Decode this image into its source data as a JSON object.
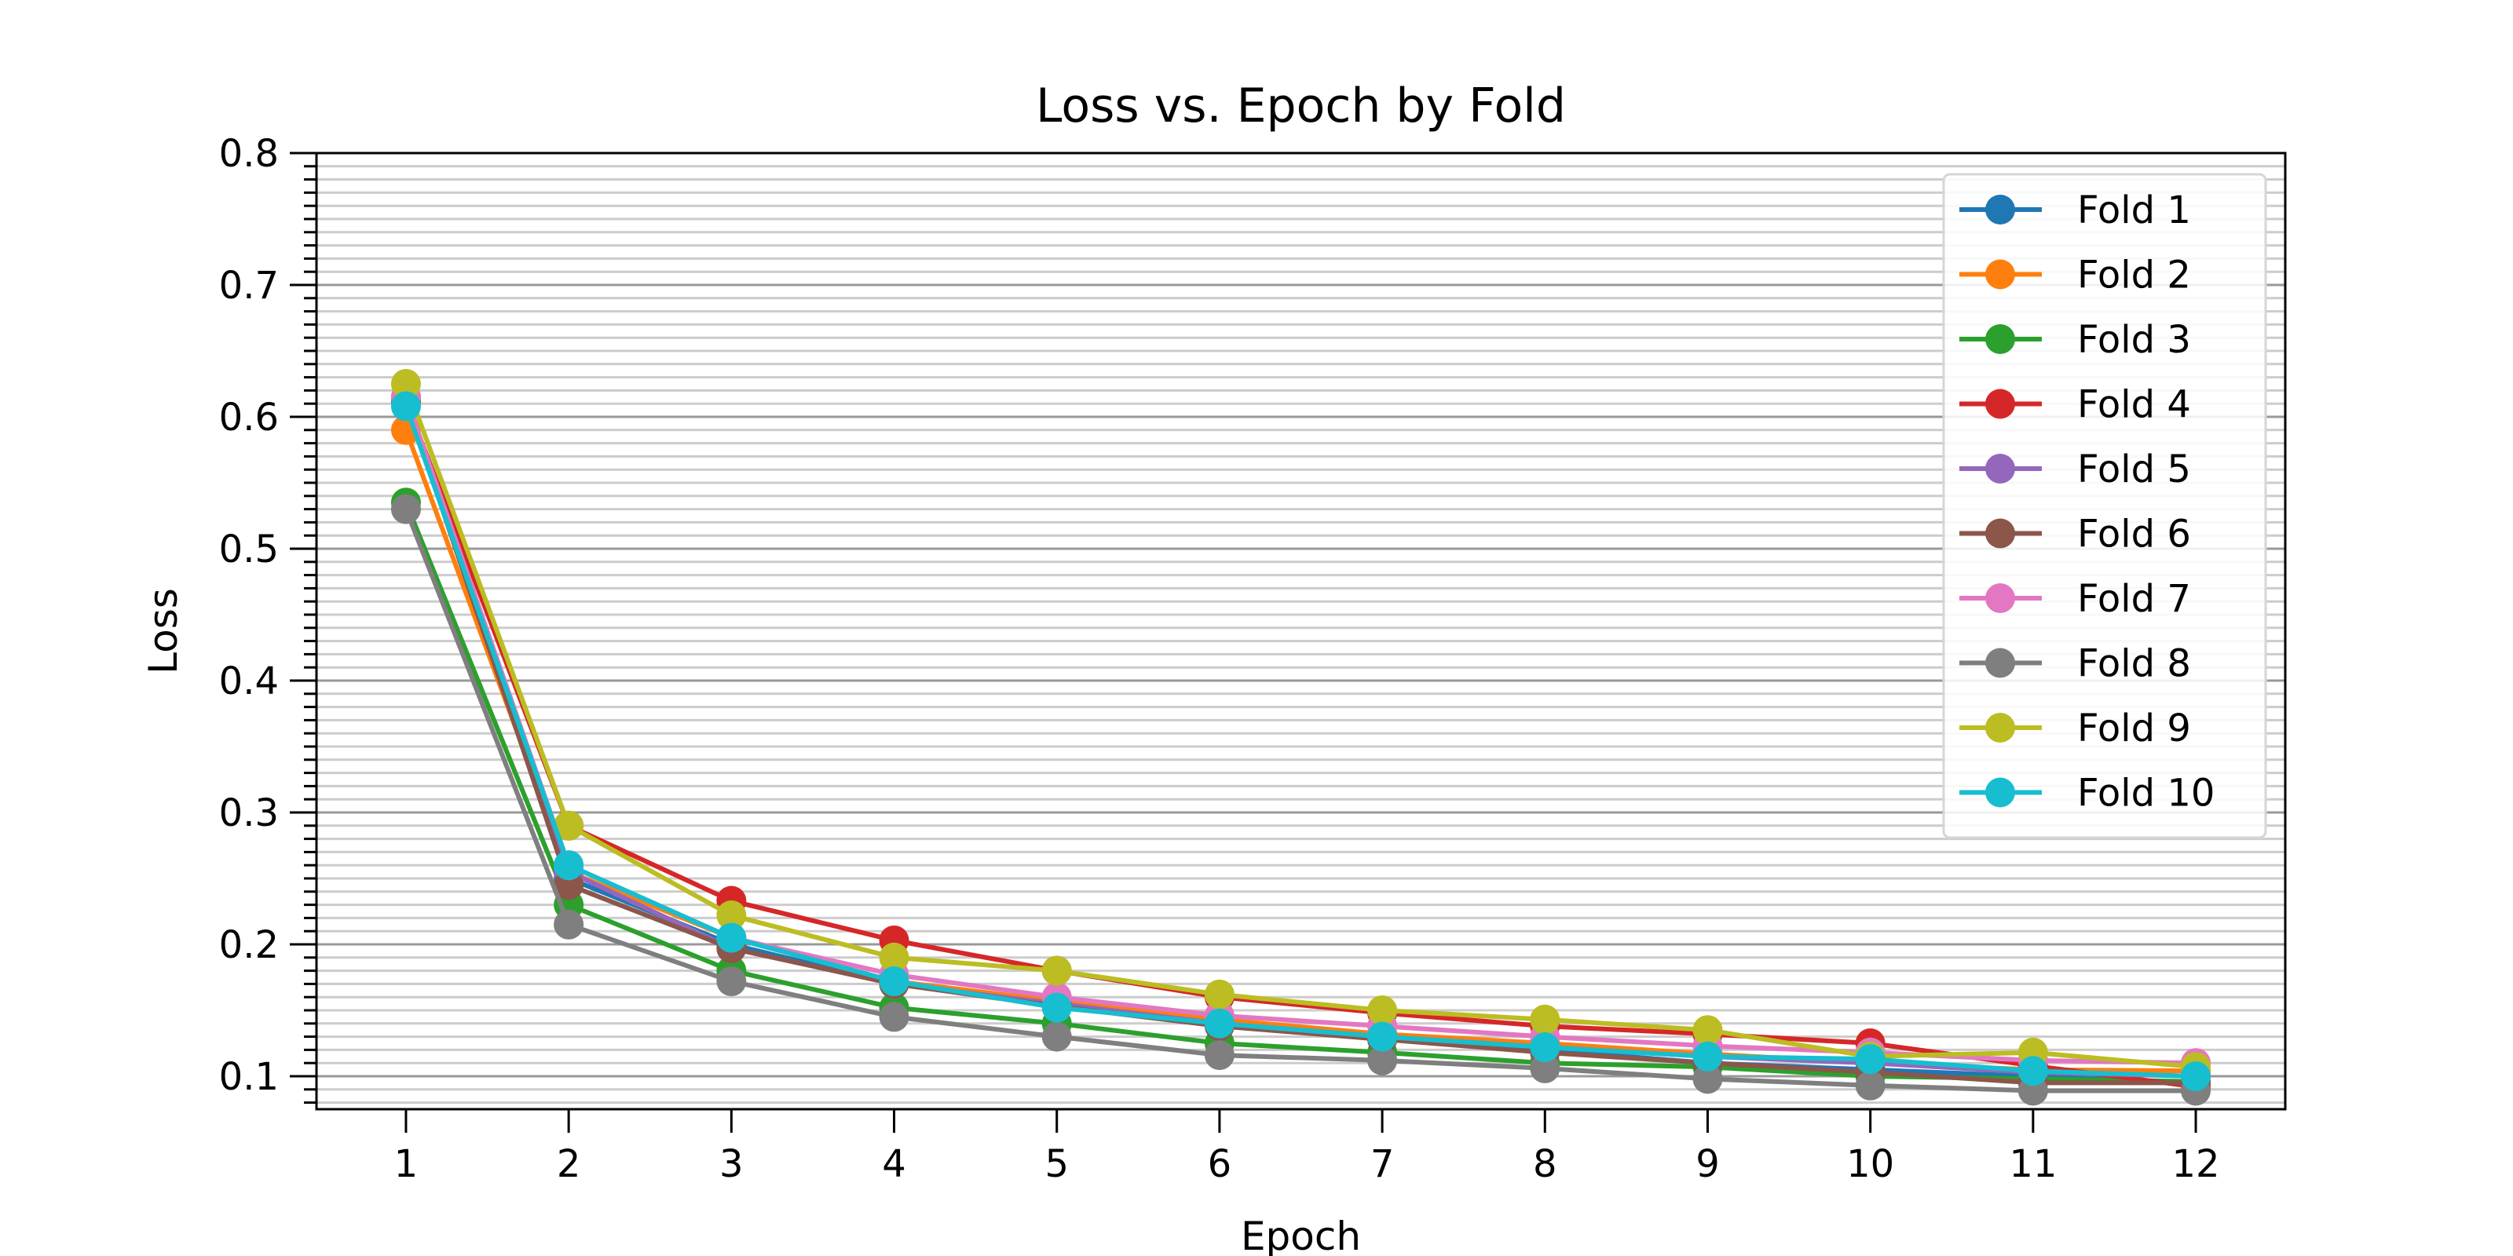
{
  "chart_data": {
    "type": "line",
    "title": "Loss vs. Epoch by Fold",
    "xlabel": "Epoch",
    "ylabel": "Loss",
    "x": [
      1,
      2,
      3,
      4,
      5,
      6,
      7,
      8,
      9,
      10,
      11,
      12
    ],
    "x_tick_labels": [
      "1",
      "2",
      "3",
      "4",
      "5",
      "6",
      "7",
      "8",
      "9",
      "10",
      "11",
      "12"
    ],
    "y_tick_labels": [
      "0.1",
      "0.2",
      "0.3",
      "0.4",
      "0.5",
      "0.6",
      "0.7",
      "0.8"
    ],
    "xlim": [
      0.45,
      12.55
    ],
    "ylim": [
      0.075,
      0.8
    ],
    "grid": "horizontal major and minor",
    "legend_position": "top-right",
    "series": [
      {
        "name": "Fold 1",
        "color": "#1f77b4",
        "values": [
          0.615,
          0.25,
          0.2,
          0.17,
          0.155,
          0.14,
          0.128,
          0.12,
          0.11,
          0.105,
          0.1,
          0.095
        ]
      },
      {
        "name": "Fold 2",
        "color": "#ff7f0e",
        "values": [
          0.59,
          0.255,
          0.205,
          0.172,
          0.157,
          0.143,
          0.132,
          0.125,
          0.117,
          0.11,
          0.105,
          0.104
        ]
      },
      {
        "name": "Fold 3",
        "color": "#2ca02c",
        "values": [
          0.535,
          0.23,
          0.18,
          0.152,
          0.14,
          0.125,
          0.118,
          0.11,
          0.107,
          0.1,
          0.098,
          0.096
        ]
      },
      {
        "name": "Fold 4",
        "color": "#d62728",
        "values": [
          0.612,
          0.29,
          0.233,
          0.203,
          0.18,
          0.16,
          0.148,
          0.138,
          0.132,
          0.125,
          0.108,
          0.092
        ]
      },
      {
        "name": "Fold 5",
        "color": "#9467bd",
        "values": [
          0.61,
          0.255,
          0.197,
          0.17,
          0.155,
          0.14,
          0.13,
          0.122,
          0.115,
          0.11,
          0.103,
          0.1
        ]
      },
      {
        "name": "Fold 6",
        "color": "#8c564b",
        "values": [
          0.612,
          0.245,
          0.197,
          0.17,
          0.153,
          0.138,
          0.128,
          0.118,
          0.11,
          0.103,
          0.095,
          0.095
        ]
      },
      {
        "name": "Fold 7",
        "color": "#e377c2",
        "values": [
          0.615,
          0.26,
          0.205,
          0.177,
          0.16,
          0.146,
          0.138,
          0.13,
          0.123,
          0.118,
          0.112,
          0.11
        ]
      },
      {
        "name": "Fold 8",
        "color": "#7f7f7f",
        "values": [
          0.53,
          0.215,
          0.172,
          0.145,
          0.13,
          0.116,
          0.112,
          0.106,
          0.098,
          0.093,
          0.089,
          0.089
        ]
      },
      {
        "name": "Fold 9",
        "color": "#bcbd22",
        "values": [
          0.625,
          0.29,
          0.222,
          0.19,
          0.18,
          0.162,
          0.15,
          0.143,
          0.135,
          0.115,
          0.118,
          0.107
        ]
      },
      {
        "name": "Fold 10",
        "color": "#17becf",
        "values": [
          0.608,
          0.26,
          0.205,
          0.172,
          0.152,
          0.14,
          0.13,
          0.122,
          0.115,
          0.113,
          0.104,
          0.1
        ]
      }
    ]
  }
}
